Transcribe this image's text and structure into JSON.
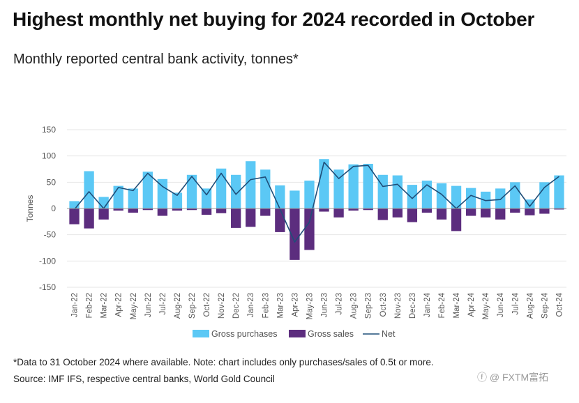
{
  "header": {
    "title": "Highest monthly net buying for 2024 recorded in October",
    "subtitle": "Monthly reported central bank activity, tonnes*"
  },
  "footer": {
    "note": "*Data to 31 October 2024 where available. Note: chart includes only purchases/sales of 0.5t or more.",
    "source": "Source: IMF IFS, respective central banks, World Gold Council"
  },
  "watermark": "FXTM富拓",
  "colors": {
    "gross_purchases": "#5bc8f5",
    "gross_sales": "#5c2d7e",
    "net": "#1f4e79",
    "zero_line": "#999999",
    "grid": "#e6e6e6"
  },
  "chart_data": {
    "type": "bar",
    "title": "Highest monthly net buying for 2024 recorded in October",
    "ylabel": "Tonnes",
    "ylim": [
      -150,
      150
    ],
    "yticks": [
      150,
      100,
      50,
      0,
      -50,
      -100,
      -150
    ],
    "grid": true,
    "legend_position": "bottom",
    "categories": [
      "Jan-22",
      "Feb-22",
      "Mar-22",
      "Apr-22",
      "May-22",
      "Jun-22",
      "Jul-22",
      "Aug-22",
      "Sep-22",
      "Oct-22",
      "Nov-22",
      "Dec-22",
      "Jan-23",
      "Feb-23",
      "Mar-23",
      "Apr-23",
      "May-23",
      "Jun-23",
      "Jul-23",
      "Aug-23",
      "Sep-23",
      "Oct-23",
      "Nov-23",
      "Dec-23",
      "Jan-24",
      "Feb-24",
      "Mar-24",
      "Apr-24",
      "May-24",
      "Jun-24",
      "Jul-24",
      "Aug-24",
      "Sep-24",
      "Oct-24"
    ],
    "series": [
      {
        "name": "Gross purchases",
        "kind": "bar",
        "values": [
          14,
          71,
          22,
          43,
          38,
          70,
          56,
          30,
          64,
          38,
          76,
          64,
          90,
          74,
          44,
          34,
          53,
          94,
          74,
          84,
          85,
          64,
          63,
          45,
          53,
          48,
          43,
          39,
          32,
          38,
          50,
          17,
          50,
          63
        ]
      },
      {
        "name": "Gross sales",
        "kind": "bar",
        "values": [
          -30,
          -38,
          -21,
          -4,
          -8,
          -3,
          -14,
          -4,
          -3,
          -12,
          -9,
          -37,
          -35,
          -14,
          -45,
          -98,
          -79,
          -6,
          -17,
          -4,
          -3,
          -22,
          -17,
          -26,
          -8,
          -21,
          -43,
          -14,
          -17,
          -21,
          -8,
          -13,
          -10,
          -2
        ]
      },
      {
        "name": "Net",
        "kind": "line",
        "values": [
          -2,
          32,
          0,
          40,
          34,
          67,
          42,
          25,
          61,
          26,
          67,
          27,
          55,
          60,
          -1,
          -64,
          -26,
          88,
          57,
          80,
          82,
          42,
          46,
          19,
          45,
          27,
          0,
          25,
          15,
          17,
          43,
          4,
          40,
          61
        ]
      }
    ]
  }
}
